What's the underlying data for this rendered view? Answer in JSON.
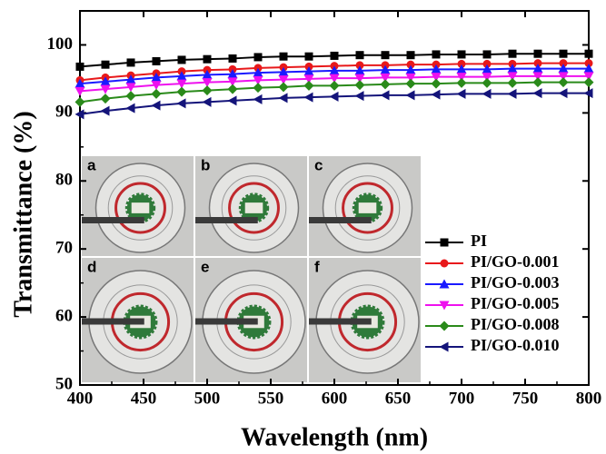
{
  "chart_data": {
    "type": "line",
    "xlabel": "Wavelength (nm)",
    "ylabel": "Transmittance (%)",
    "x": [
      400,
      420,
      440,
      460,
      480,
      500,
      520,
      540,
      560,
      580,
      600,
      620,
      640,
      660,
      680,
      700,
      720,
      740,
      760,
      780,
      800
    ],
    "xlim": [
      400,
      800
    ],
    "xticks": [
      400,
      450,
      500,
      550,
      600,
      650,
      700,
      750,
      800
    ],
    "ylim": [
      50,
      105
    ],
    "yticks": [
      50,
      60,
      70,
      80,
      90,
      100
    ],
    "series": [
      {
        "name": "PI",
        "color": "#000000",
        "marker": "square",
        "values": [
          96.8,
          97.1,
          97.4,
          97.6,
          97.8,
          97.9,
          98.0,
          98.2,
          98.3,
          98.3,
          98.4,
          98.5,
          98.5,
          98.5,
          98.6,
          98.6,
          98.6,
          98.7,
          98.7,
          98.7,
          98.7
        ]
      },
      {
        "name": "PI/GO-0.001",
        "color": "#e8191b",
        "marker": "circle",
        "values": [
          94.8,
          95.2,
          95.5,
          95.8,
          96.1,
          96.3,
          96.4,
          96.6,
          96.7,
          96.8,
          96.9,
          97.0,
          97.0,
          97.1,
          97.1,
          97.2,
          97.2,
          97.2,
          97.3,
          97.3,
          97.3
        ]
      },
      {
        "name": "PI/GO-0.003",
        "color": "#1a1aff",
        "marker": "triangle-up",
        "values": [
          94.3,
          94.6,
          94.9,
          95.2,
          95.4,
          95.6,
          95.7,
          95.9,
          96.0,
          96.1,
          96.2,
          96.2,
          96.3,
          96.3,
          96.4,
          96.4,
          96.4,
          96.5,
          96.5,
          96.5,
          96.5
        ]
      },
      {
        "name": "PI/GO-0.005",
        "color": "#ee11ee",
        "marker": "triangle-down",
        "values": [
          93.2,
          93.5,
          93.8,
          94.1,
          94.3,
          94.5,
          94.6,
          94.8,
          94.9,
          95.0,
          95.1,
          95.1,
          95.2,
          95.2,
          95.3,
          95.3,
          95.3,
          95.4,
          95.4,
          95.4,
          95.4
        ]
      },
      {
        "name": "PI/GO-0.008",
        "color": "#2a8a1a",
        "marker": "diamond",
        "values": [
          91.6,
          92.1,
          92.5,
          92.8,
          93.1,
          93.3,
          93.5,
          93.7,
          93.8,
          94.0,
          94.0,
          94.1,
          94.2,
          94.3,
          94.3,
          94.4,
          94.4,
          94.4,
          94.5,
          94.5,
          94.5
        ]
      },
      {
        "name": "PI/GO-0.010",
        "color": "#14147a",
        "marker": "triangle-left",
        "values": [
          89.8,
          90.3,
          90.7,
          91.1,
          91.4,
          91.6,
          91.8,
          92.0,
          92.2,
          92.3,
          92.4,
          92.5,
          92.6,
          92.6,
          92.7,
          92.8,
          92.8,
          92.8,
          92.9,
          92.9,
          92.9
        ]
      }
    ],
    "insets": [
      "a",
      "b",
      "c",
      "d",
      "e",
      "f"
    ]
  }
}
